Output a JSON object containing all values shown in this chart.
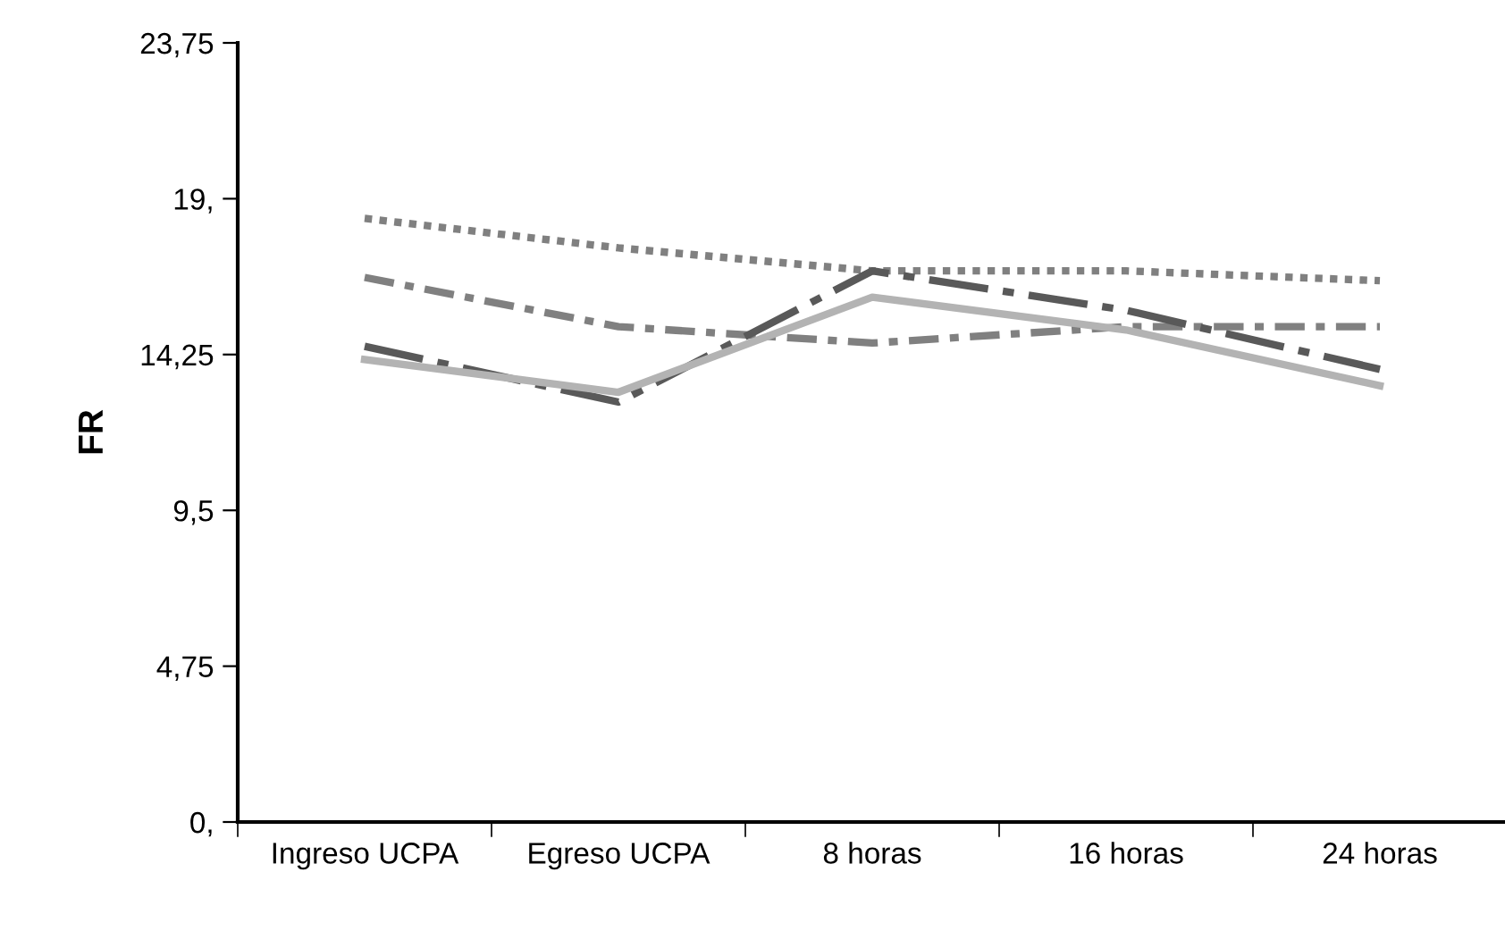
{
  "chart_data": {
    "type": "line",
    "ylabel": "FR",
    "categories": [
      "Ingreso UCPA",
      "Egreso UCPA",
      "8 horas",
      "16 horas",
      "24 horas"
    ],
    "series": [
      {
        "color": "#808080",
        "line_style": "dotted",
        "values": [
          18.4,
          17.5,
          16.8,
          16.8,
          16.5
        ]
      },
      {
        "color": "#808080",
        "line_style": "dashed",
        "values": [
          16.6,
          15.1,
          14.6,
          15.1,
          15.1
        ]
      },
      {
        "color": "#595959",
        "line_style": "dashed",
        "values": [
          14.5,
          12.8,
          16.8,
          15.6,
          13.8
        ]
      },
      {
        "color": "#b3b3b3",
        "line_style": "solid",
        "values": [
          14.1,
          13.1,
          16.0,
          15.0,
          13.3
        ]
      }
    ],
    "ylim": [
      0,
      23.75
    ],
    "yticks": [
      {
        "value": 0,
        "label": "0,"
      },
      {
        "value": 4.75,
        "label": "4,75"
      },
      {
        "value": 9.5,
        "label": "9,5"
      },
      {
        "value": 14.25,
        "label": "14,25"
      },
      {
        "value": 19,
        "label": "19,"
      },
      {
        "value": 23.75,
        "label": "23,75"
      }
    ],
    "grid": false,
    "legend": false,
    "marker": "none"
  }
}
